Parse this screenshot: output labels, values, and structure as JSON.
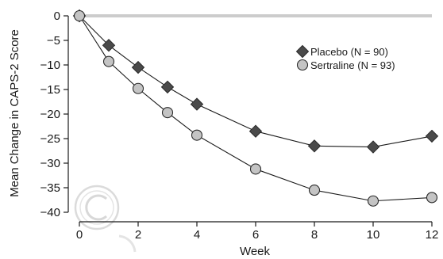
{
  "chart_data": {
    "type": "line",
    "title": "",
    "xlabel": "Week",
    "ylabel": "Mean Change in CAPS-2 Score",
    "xlim": [
      0,
      12
    ],
    "ylim": [
      -40,
      0
    ],
    "x_ticks": [
      0,
      2,
      4,
      6,
      8,
      10,
      12
    ],
    "y_ticks": [
      0,
      -5,
      -10,
      -15,
      -20,
      -25,
      -30,
      -35,
      -40
    ],
    "x_tick_labels": [
      "0",
      "2",
      "4",
      "6",
      "8",
      "10",
      "12"
    ],
    "y_tick_labels": [
      "0",
      "−5",
      "−10",
      "−15",
      "−20",
      "−25",
      "−30",
      "−35",
      "−40"
    ],
    "grid": false,
    "reference_line_y": 0,
    "legend_position": "upper-right",
    "series": [
      {
        "name": "Placebo (N = 90)",
        "marker": "diamond",
        "color": "#4a4a4a",
        "x": [
          0,
          1,
          2,
          3,
          4,
          6,
          8,
          10,
          12
        ],
        "values": [
          0,
          -6,
          -10.5,
          -14.5,
          -18,
          -23.5,
          -26.5,
          -26.7,
          -24.5
        ]
      },
      {
        "name": "Sertraline (N = 93)",
        "marker": "circle",
        "color": "#c4c4c4",
        "x": [
          0,
          1,
          2,
          3,
          4,
          6,
          8,
          10,
          12
        ],
        "values": [
          0,
          -9.3,
          -14.8,
          -19.7,
          -24.3,
          -31.2,
          -35.5,
          -37.7,
          -37
        ]
      }
    ]
  },
  "colors": {
    "axis": "#1a1a1a",
    "reference_line": "#cccccc",
    "watermark": "#dddddd"
  }
}
